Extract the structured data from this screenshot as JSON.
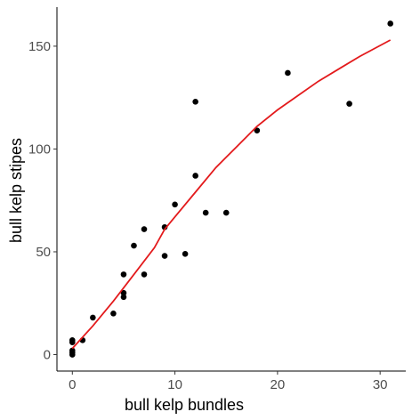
{
  "chart_data": {
    "type": "scatter",
    "xlabel": "bull kelp bundles",
    "ylabel": "bull kelp stipes",
    "xlim": [
      -1.5,
      32.5
    ],
    "ylim": [
      -8,
      169
    ],
    "xticks": [
      0,
      10,
      20,
      30
    ],
    "yticks": [
      0,
      50,
      100,
      150
    ],
    "grid": false,
    "point_color": "#000000",
    "points": [
      {
        "x": 0,
        "y": 0
      },
      {
        "x": 0,
        "y": 1
      },
      {
        "x": 0,
        "y": 2
      },
      {
        "x": 0,
        "y": 6
      },
      {
        "x": 0,
        "y": 7
      },
      {
        "x": 1,
        "y": 7
      },
      {
        "x": 2,
        "y": 18
      },
      {
        "x": 4,
        "y": 20
      },
      {
        "x": 5,
        "y": 28
      },
      {
        "x": 5,
        "y": 30
      },
      {
        "x": 5,
        "y": 39
      },
      {
        "x": 6,
        "y": 53
      },
      {
        "x": 7,
        "y": 39
      },
      {
        "x": 7,
        "y": 61
      },
      {
        "x": 9,
        "y": 48
      },
      {
        "x": 9,
        "y": 62
      },
      {
        "x": 10,
        "y": 73
      },
      {
        "x": 11,
        "y": 49
      },
      {
        "x": 12,
        "y": 87
      },
      {
        "x": 12,
        "y": 123
      },
      {
        "x": 13,
        "y": 69
      },
      {
        "x": 15,
        "y": 69
      },
      {
        "x": 18,
        "y": 109
      },
      {
        "x": 21,
        "y": 137
      },
      {
        "x": 27,
        "y": 122
      },
      {
        "x": 31,
        "y": 161
      }
    ],
    "trend_line": {
      "color": "#e31a1c",
      "points": [
        {
          "x": 0,
          "y": 3
        },
        {
          "x": 2,
          "y": 14
        },
        {
          "x": 4,
          "y": 26
        },
        {
          "x": 6,
          "y": 39
        },
        {
          "x": 8,
          "y": 52
        },
        {
          "x": 9,
          "y": 61
        },
        {
          "x": 10,
          "y": 67
        },
        {
          "x": 12,
          "y": 79
        },
        {
          "x": 14,
          "y": 91
        },
        {
          "x": 16,
          "y": 101
        },
        {
          "x": 18,
          "y": 111
        },
        {
          "x": 20,
          "y": 119
        },
        {
          "x": 22,
          "y": 126
        },
        {
          "x": 24,
          "y": 133
        },
        {
          "x": 26,
          "y": 139
        },
        {
          "x": 28,
          "y": 145
        },
        {
          "x": 31,
          "y": 153
        }
      ]
    }
  }
}
